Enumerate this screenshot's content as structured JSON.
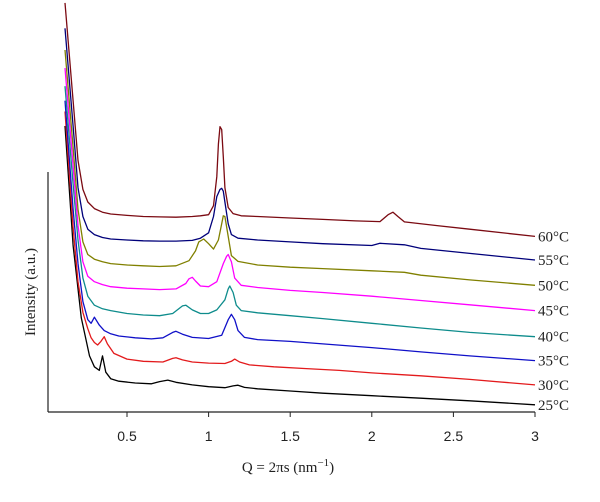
{
  "chart_data": {
    "type": "line",
    "title": "",
    "xlabel": "Q = 2πs (nm",
    "xlabel_sup": "−1",
    "xlabel_close": ")",
    "ylabel": "Intensity (a.u.)",
    "xlim": [
      0.12,
      3.0
    ],
    "ylim": [
      0,
      9.2
    ],
    "x_ticks": [
      0.5,
      1,
      1.5,
      2,
      2.5,
      3
    ],
    "x_tick_labels": [
      "0.5",
      "1",
      "1.5",
      "2",
      "2.5",
      "3"
    ],
    "grid": false,
    "legend": "none",
    "series": [
      {
        "name": "25°C",
        "color": "#000000",
        "x": [
          0.12,
          0.17,
          0.22,
          0.27,
          0.3,
          0.33,
          0.35,
          0.37,
          0.4,
          0.45,
          0.55,
          0.65,
          0.7,
          0.75,
          0.8,
          0.9,
          1.0,
          1.1,
          1.15,
          1.18,
          1.22,
          1.3,
          1.5,
          1.7,
          2.0,
          2.3,
          2.6,
          3.0
        ],
        "y": [
          7.9,
          4.6,
          2.6,
          1.55,
          1.25,
          1.15,
          1.55,
          1.1,
          0.92,
          0.85,
          0.8,
          0.78,
          0.84,
          0.88,
          0.82,
          0.75,
          0.7,
          0.67,
          0.72,
          0.74,
          0.68,
          0.64,
          0.58,
          0.52,
          0.45,
          0.38,
          0.31,
          0.2
        ]
      },
      {
        "name": "30°C",
        "color": "#e31a1c",
        "x": [
          0.12,
          0.17,
          0.2,
          0.23,
          0.26,
          0.28,
          0.3,
          0.32,
          0.34,
          0.36,
          0.38,
          0.42,
          0.5,
          0.6,
          0.72,
          0.78,
          0.8,
          0.84,
          0.9,
          1.0,
          1.1,
          1.14,
          1.16,
          1.19,
          1.25,
          1.4,
          1.6,
          1.8,
          2.0,
          2.3,
          2.6,
          3.0
        ],
        "y": [
          8.3,
          5.1,
          3.6,
          2.75,
          2.3,
          2.05,
          1.92,
          1.85,
          1.95,
          2.08,
          1.88,
          1.62,
          1.46,
          1.4,
          1.38,
          1.48,
          1.5,
          1.44,
          1.38,
          1.35,
          1.34,
          1.4,
          1.46,
          1.38,
          1.3,
          1.25,
          1.2,
          1.15,
          1.08,
          1.0,
          0.9,
          0.75
        ]
      },
      {
        "name": "35°C",
        "color": "#1010c8",
        "x": [
          0.12,
          0.17,
          0.2,
          0.23,
          0.26,
          0.28,
          0.3,
          0.33,
          0.36,
          0.4,
          0.45,
          0.55,
          0.65,
          0.72,
          0.78,
          0.8,
          0.84,
          0.9,
          1.0,
          1.08,
          1.12,
          1.14,
          1.16,
          1.18,
          1.22,
          1.3,
          1.5,
          1.7,
          2.0,
          2.3,
          2.6,
          3.0
        ],
        "y": [
          8.6,
          5.6,
          4.1,
          3.05,
          2.55,
          2.45,
          2.62,
          2.4,
          2.25,
          2.16,
          2.1,
          2.05,
          2.02,
          2.05,
          2.2,
          2.23,
          2.15,
          2.06,
          2.03,
          2.12,
          2.55,
          2.7,
          2.55,
          2.25,
          2.06,
          2.0,
          1.95,
          1.88,
          1.78,
          1.66,
          1.55,
          1.42
        ]
      },
      {
        "name": "40°C",
        "color": "#0e8c8c",
        "x": [
          0.12,
          0.17,
          0.2,
          0.23,
          0.26,
          0.3,
          0.35,
          0.4,
          0.5,
          0.6,
          0.7,
          0.78,
          0.84,
          0.86,
          0.9,
          0.95,
          1.0,
          1.05,
          1.1,
          1.12,
          1.13,
          1.15,
          1.17,
          1.2,
          1.3,
          1.5,
          1.7,
          2.0,
          2.3,
          2.6,
          3.0
        ],
        "y": [
          9.0,
          6.3,
          4.75,
          3.7,
          3.2,
          2.95,
          2.85,
          2.8,
          2.72,
          2.68,
          2.66,
          2.72,
          2.93,
          2.95,
          2.82,
          2.72,
          2.72,
          2.82,
          3.1,
          3.4,
          3.48,
          3.3,
          2.95,
          2.8,
          2.74,
          2.66,
          2.58,
          2.45,
          2.32,
          2.2,
          2.08
        ]
      },
      {
        "name": "45°C",
        "color": "#ff00ff",
        "x": [
          0.12,
          0.17,
          0.2,
          0.23,
          0.26,
          0.3,
          0.35,
          0.4,
          0.5,
          0.6,
          0.7,
          0.8,
          0.86,
          0.88,
          0.9,
          0.92,
          0.95,
          1.0,
          1.05,
          1.09,
          1.11,
          1.12,
          1.14,
          1.16,
          1.2,
          1.3,
          1.5,
          1.7,
          2.0,
          2.3,
          2.6,
          3.0
        ],
        "y": [
          9.5,
          6.8,
          5.15,
          4.15,
          3.75,
          3.6,
          3.52,
          3.46,
          3.42,
          3.4,
          3.38,
          3.4,
          3.55,
          3.68,
          3.72,
          3.62,
          3.48,
          3.46,
          3.6,
          4.1,
          4.3,
          4.35,
          4.15,
          3.7,
          3.5,
          3.44,
          3.36,
          3.3,
          3.2,
          3.08,
          2.96,
          2.8
        ]
      },
      {
        "name": "50°C",
        "color": "#808000",
        "x": [
          0.12,
          0.17,
          0.2,
          0.23,
          0.26,
          0.3,
          0.35,
          0.4,
          0.5,
          0.6,
          0.7,
          0.8,
          0.88,
          0.92,
          0.94,
          0.97,
          1.0,
          1.03,
          1.06,
          1.08,
          1.09,
          1.1,
          1.12,
          1.14,
          1.18,
          1.3,
          1.5,
          1.7,
          2.0,
          2.2,
          2.3,
          2.6,
          3.0
        ],
        "y": [
          10.0,
          7.3,
          5.6,
          4.7,
          4.35,
          4.22,
          4.15,
          4.1,
          4.06,
          4.04,
          4.02,
          4.04,
          4.18,
          4.45,
          4.7,
          4.78,
          4.65,
          4.5,
          4.75,
          5.2,
          5.42,
          5.4,
          4.85,
          4.32,
          4.16,
          4.06,
          4.0,
          3.96,
          3.9,
          3.86,
          3.78,
          3.65,
          3.5
        ]
      },
      {
        "name": "55°C",
        "color": "#00007a",
        "x": [
          0.12,
          0.17,
          0.2,
          0.23,
          0.26,
          0.3,
          0.35,
          0.4,
          0.5,
          0.6,
          0.7,
          0.8,
          0.9,
          0.95,
          1.0,
          1.03,
          1.05,
          1.07,
          1.08,
          1.09,
          1.1,
          1.12,
          1.14,
          1.18,
          1.3,
          1.5,
          1.7,
          2.0,
          2.05,
          2.2,
          2.3,
          2.6,
          3.0
        ],
        "y": [
          10.6,
          7.9,
          6.2,
          5.4,
          5.05,
          4.9,
          4.82,
          4.78,
          4.75,
          4.73,
          4.72,
          4.72,
          4.74,
          4.8,
          4.95,
          5.4,
          5.95,
          6.15,
          6.18,
          6.1,
          5.8,
          5.2,
          4.9,
          4.8,
          4.75,
          4.7,
          4.65,
          4.6,
          4.66,
          4.62,
          4.52,
          4.38,
          4.2
        ]
      },
      {
        "name": "60°C",
        "color": "#7b0a12",
        "x": [
          0.12,
          0.17,
          0.2,
          0.23,
          0.26,
          0.3,
          0.35,
          0.4,
          0.5,
          0.6,
          0.7,
          0.8,
          0.9,
          0.95,
          1.0,
          1.03,
          1.05,
          1.06,
          1.07,
          1.08,
          1.09,
          1.1,
          1.12,
          1.15,
          1.2,
          1.3,
          1.5,
          1.7,
          1.9,
          2.05,
          2.1,
          2.13,
          2.16,
          2.2,
          2.4,
          2.6,
          3.0
        ],
        "y": [
          11.3,
          8.6,
          6.95,
          6.15,
          5.8,
          5.62,
          5.52,
          5.47,
          5.43,
          5.4,
          5.39,
          5.38,
          5.4,
          5.42,
          5.45,
          5.7,
          6.5,
          7.4,
          7.88,
          7.8,
          7.05,
          6.2,
          5.65,
          5.48,
          5.42,
          5.4,
          5.36,
          5.32,
          5.28,
          5.26,
          5.45,
          5.52,
          5.4,
          5.25,
          5.15,
          5.05,
          4.85
        ]
      }
    ]
  }
}
